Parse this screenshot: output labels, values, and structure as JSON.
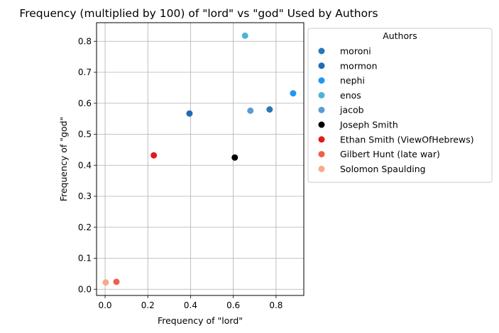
{
  "chart_data": {
    "type": "scatter",
    "title": "Frequency (multiplied by 100) of \"lord\" vs \"god\" Used by Authors",
    "xlabel": "Frequency of \"lord\"",
    "ylabel": "Frequency of \"god\"",
    "xlim": [
      -0.04,
      0.93
    ],
    "ylim": [
      -0.02,
      0.86
    ],
    "xticks": [
      0.0,
      0.2,
      0.4,
      0.6,
      0.8
    ],
    "yticks": [
      0.0,
      0.1,
      0.2,
      0.3,
      0.4,
      0.5,
      0.6,
      0.7,
      0.8
    ],
    "grid": true,
    "legend": {
      "title": "Authors",
      "placement": "outside-right-top"
    },
    "series": [
      {
        "name": "moroni",
        "color": "#2878b8",
        "points": [
          [
            0.77,
            0.58
          ]
        ]
      },
      {
        "name": "mormon",
        "color": "#1f6bb4",
        "points": [
          [
            0.395,
            0.567
          ]
        ]
      },
      {
        "name": "nephi",
        "color": "#2196f3",
        "points": [
          [
            0.88,
            0.632
          ]
        ]
      },
      {
        "name": "enos",
        "color": "#4eb3d3",
        "points": [
          [
            0.655,
            0.818
          ]
        ]
      },
      {
        "name": "jacob",
        "color": "#5b9bd5",
        "points": [
          [
            0.68,
            0.576
          ]
        ]
      },
      {
        "name": "Joseph Smith",
        "color": "#000000",
        "points": [
          [
            0.607,
            0.425
          ]
        ]
      },
      {
        "name": "Ethan Smith (ViewOfHebrews)",
        "color": "#e31a1c",
        "points": [
          [
            0.228,
            0.432
          ]
        ]
      },
      {
        "name": "Gilbert Hunt (late war)",
        "color": "#f0604a",
        "points": [
          [
            0.053,
            0.024
          ]
        ]
      },
      {
        "name": "Solomon Spaulding",
        "color": "#f9a98b",
        "points": [
          [
            0.003,
            0.022
          ]
        ]
      }
    ]
  }
}
